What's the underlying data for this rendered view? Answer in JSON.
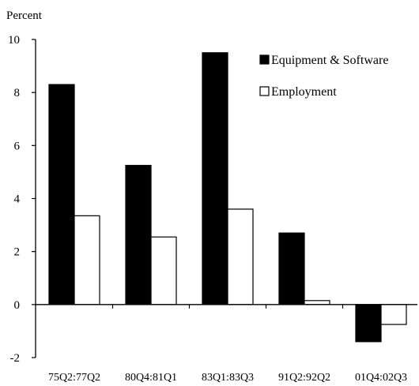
{
  "chart_data": {
    "type": "bar",
    "ylabel": "Percent",
    "ylim": [
      -2,
      10
    ],
    "yticks": [
      -2,
      0,
      2,
      4,
      6,
      8,
      10
    ],
    "categories": [
      "75Q2:77Q2",
      "80Q4:81Q1",
      "83Q1:83Q3",
      "91Q2:92Q2",
      "01Q4:02Q3"
    ],
    "series": [
      {
        "name": "Equipment & Software",
        "values": [
          8.3,
          5.25,
          9.5,
          2.7,
          -1.4
        ],
        "color": "#000000"
      },
      {
        "name": "Employment",
        "values": [
          3.35,
          2.55,
          3.6,
          0.15,
          -0.75
        ],
        "color": "#ffffff"
      }
    ],
    "grid": false,
    "legend_position": "top-right"
  }
}
